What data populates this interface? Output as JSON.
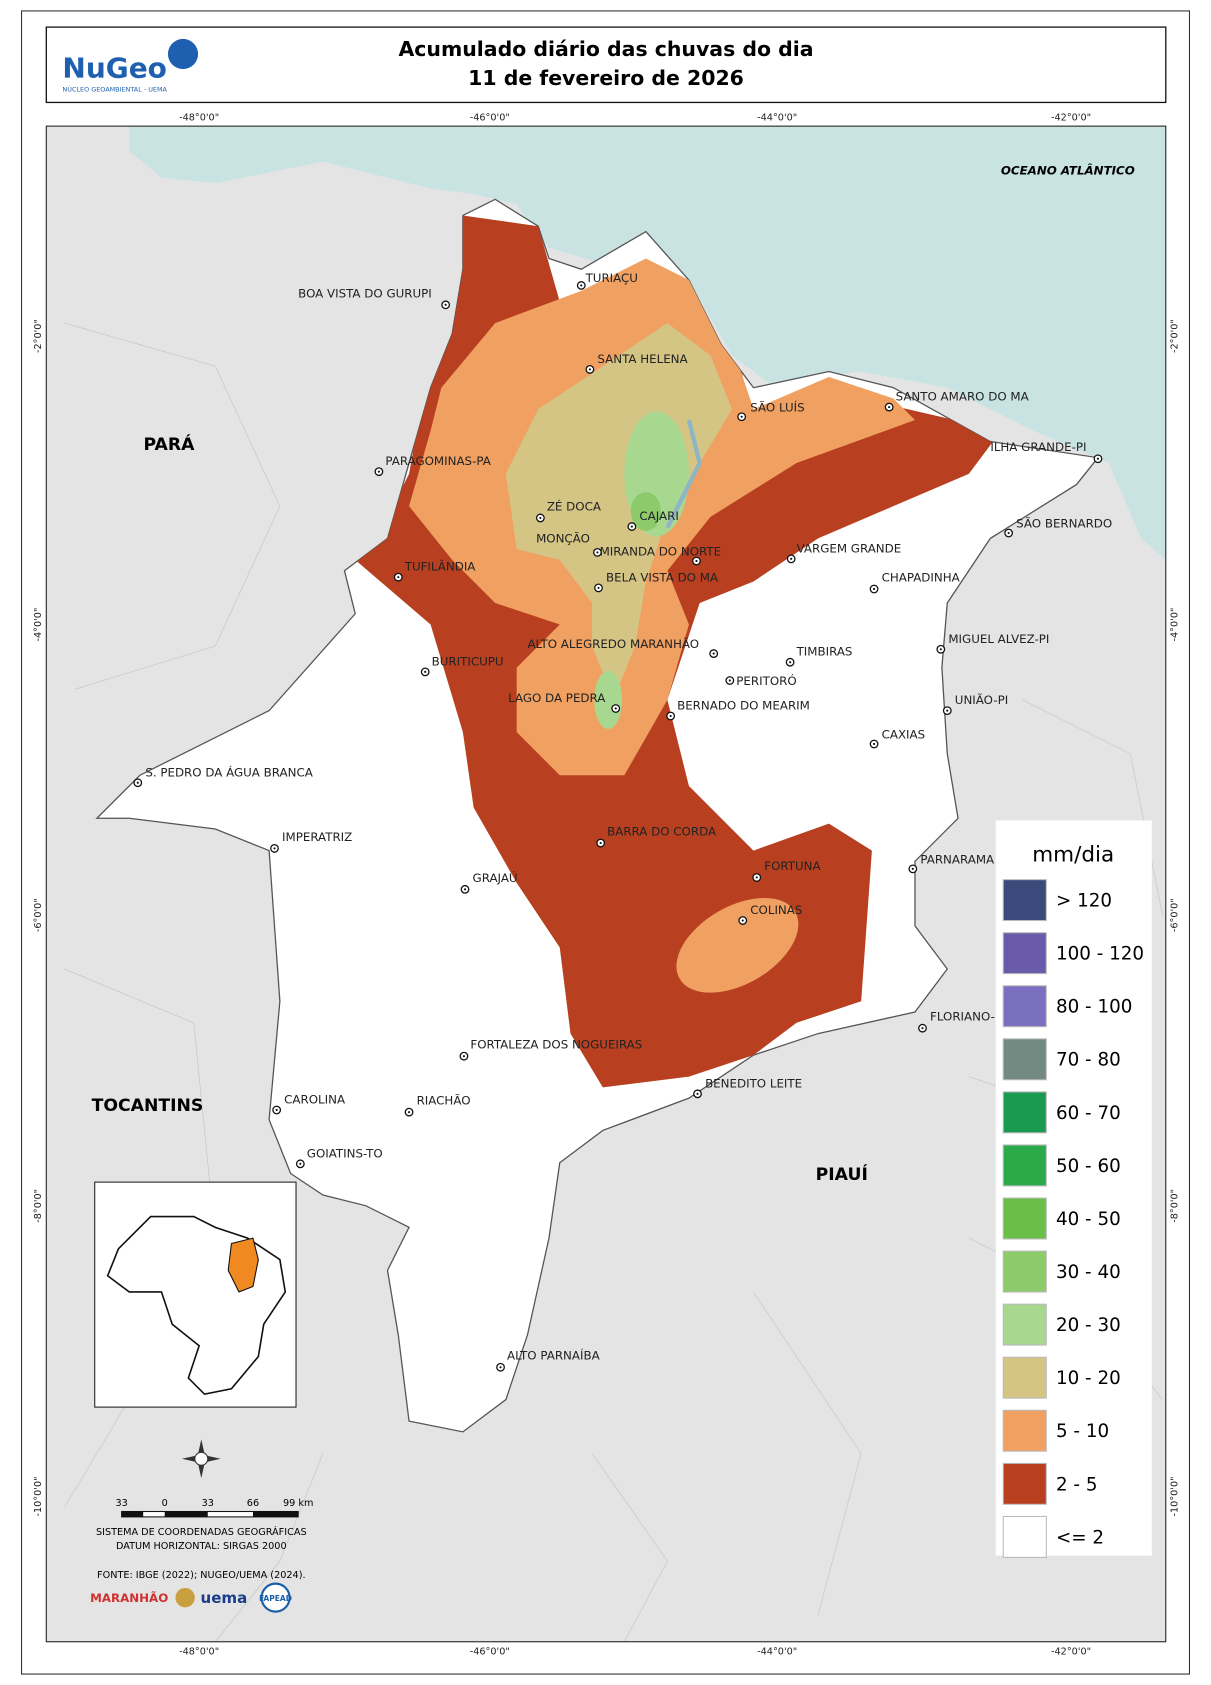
{
  "header": {
    "logo": "NuGeo",
    "logo_sub": "NÚCLEO GEOAMBIENTAL - UEMA",
    "title_line1": "Acumulado diário das chuvas do dia",
    "title_line2": "11 de fevereiro de 2026"
  },
  "grid_labels": {
    "top": [
      "-48°0'0\"",
      "-46°0'0\"",
      "-44°0'0\"",
      "-42°0'0\""
    ],
    "bottom": [
      "-48°0'0\"",
      "-46°0'0\"",
      "-44°0'0\"",
      "-42°0'0\""
    ],
    "left": [
      "-2°0'0\"",
      "-4°0'0\"",
      "-6°0'0\"",
      "-8°0'0\"",
      "-10°0'0\""
    ],
    "right": [
      "-2°0'0\"",
      "-4°0'0\"",
      "-6°0'0\"",
      "-8°0'0\"",
      "-10°0'0\""
    ]
  },
  "map": {
    "ocean_label": "OCEANO ATLÂNTICO",
    "regions": [
      "PARÁ",
      "TOCANTINS",
      "PIAUÍ"
    ],
    "cities": [
      "TURIAÇU",
      "BOA VISTA DO GURUPI",
      "SANTA HELENA",
      "SÃO LUÍS",
      "SANTO AMARO DO MA",
      "PARAGOMINAS-PA",
      "ILHA GRANDE-PI",
      "ZÉ DOCA",
      "CAJARI",
      "SÃO BERNARDO",
      "MONÇÃO",
      "MIRANDA DO NORTE",
      "VARGEM GRANDE",
      "TUFILÂNDIA",
      "BELA VISTA DO MA",
      "CHAPADINHA",
      "ALTO ALEGREDO MARANHÃO",
      "MIGUEL ALVEZ-PI",
      "TIMBIRAS",
      "BURITICUPU",
      "PERITORÓ",
      "LAGO DA PEDRA",
      "BERNADO DO MEARIM",
      "UNIÃO-PI",
      "CAXIAS",
      "S. PEDRO DA ÁGUA BRANCA",
      "BARRA DO CORDA",
      "IMPERATRIZ",
      "PARNARAMA",
      "FORTUNA",
      "GRAJAÚ",
      "COLINAS",
      "FLORIANO-PI",
      "FORTALEZA DOS NOGUEIRAS",
      "BENEDITO LEITE",
      "CAROLINA",
      "RIACHÃO",
      "GOIATINS-TO",
      "ALTO PARNAÍBA"
    ]
  },
  "legend": {
    "title": "mm/dia",
    "items": [
      {
        "label": "> 120",
        "color": "#3b4a7a"
      },
      {
        "label": "100 - 120",
        "color": "#6a5aaa"
      },
      {
        "label": "80 - 100",
        "color": "#7b70bf"
      },
      {
        "label": "70 - 80",
        "color": "#738a82"
      },
      {
        "label": "60 - 70",
        "color": "#1a9a50"
      },
      {
        "label": "50 - 60",
        "color": "#2aaa48"
      },
      {
        "label": "40 - 50",
        "color": "#6abf48"
      },
      {
        "label": "30 - 40",
        "color": "#8cca6a"
      },
      {
        "label": "20 - 30",
        "color": "#a8d890"
      },
      {
        "label": "10 - 20",
        "color": "#d5c585"
      },
      {
        "label": "5 - 10",
        "color": "#f0a060"
      },
      {
        "label": "2 - 5",
        "color": "#b84020"
      },
      {
        "label": "<= 2",
        "color": "#ffffff"
      }
    ]
  },
  "scale_bar": {
    "labels": [
      "33",
      "0",
      "33",
      "66",
      "99 km"
    ]
  },
  "notes": [
    "SISTEMA DE COORDENADAS GEOGRÁFICAS",
    "DATUM HORIZONTAL: SIRGAS 2000",
    "FONTE: IBGE (2022); NUGEO/UEMA (2024)."
  ],
  "logos": [
    "MARANHÃO",
    "uema",
    "FAPEAD"
  ]
}
